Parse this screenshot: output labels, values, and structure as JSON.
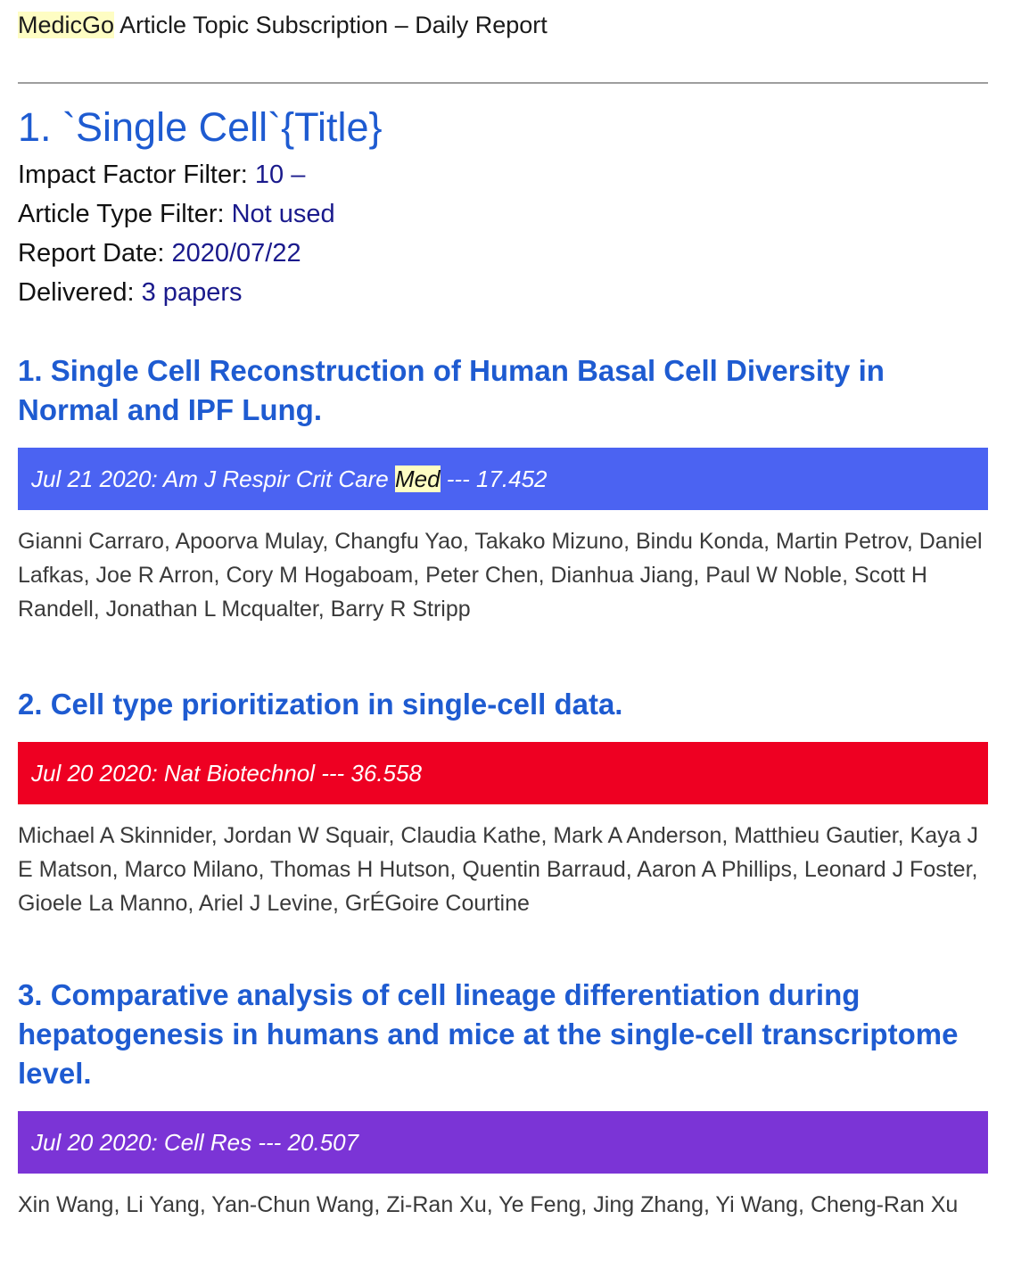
{
  "header": {
    "brand": "MedicGo",
    "title": "Article Topic Subscription – Daily Report"
  },
  "topic": {
    "title": "1. `Single Cell`{Title}",
    "impact_filter_label": "Impact Factor Filter: ",
    "impact_filter_value": "10 –",
    "type_filter_label": "Article Type Filter: ",
    "type_filter_value": "Not used",
    "report_date_label": "Report Date: ",
    "report_date_value": "2020/07/22",
    "delivered_label": "Delivered: ",
    "delivered_value": "3 papers"
  },
  "articles": [
    {
      "title": "1. Single Cell Reconstruction of Human Basal Cell Diversity in Normal and IPF Lung.",
      "journal_prefix": "Jul 21 2020: Am J Respir Crit Care ",
      "journal_highlight": "Med",
      "journal_suffix": " --- 17.452",
      "bar_color": "#4b63f2",
      "authors": "Gianni Carraro, Apoorva Mulay, Changfu Yao, Takako Mizuno, Bindu Konda, Martin Petrov, Daniel Lafkas, Joe R Arron, Cory M Hogaboam, Peter Chen, Dianhua Jiang, Paul W Noble, Scott H Randell, Jonathan L Mcqualter, Barry R Stripp"
    },
    {
      "title": "2. Cell type prioritization in single-cell data.",
      "journal_prefix": "Jul 20 2020: Nat Biotechnol --- 36.558",
      "journal_highlight": "",
      "journal_suffix": "",
      "bar_color": "#ee0022",
      "authors": "Michael A Skinnider, Jordan W Squair, Claudia Kathe, Mark A Anderson, Matthieu Gautier, Kaya J E Matson, Marco Milano, Thomas H Hutson, Quentin Barraud, Aaron A Phillips, Leonard J Foster, Gioele La Manno, Ariel J Levine, GrÉGoire Courtine"
    },
    {
      "title": "3. Comparative analysis of cell lineage differentiation during hepatogenesis in humans and mice at the single-cell transcriptome level.",
      "journal_prefix": "Jul 20 2020: Cell Res --- 20.507",
      "journal_highlight": "",
      "journal_suffix": "",
      "bar_color": "#7b34d6",
      "authors": "Xin Wang, Li Yang, Yan-Chun Wang, Zi-Ran Xu, Ye Feng, Jing Zhang, Yi Wang, Cheng-Ran Xu"
    }
  ]
}
